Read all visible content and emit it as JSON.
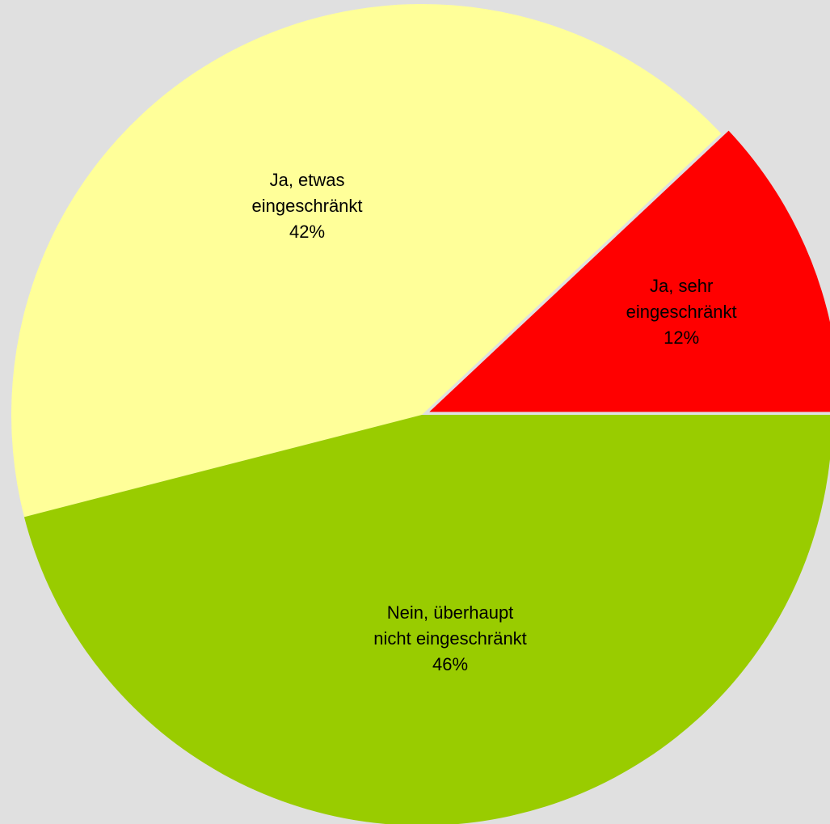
{
  "chart_data": {
    "type": "pie",
    "categories": [
      "Ja, sehr eingeschränkt",
      "Ja, etwas eingeschränkt",
      "Nein, überhaupt nicht eingeschränkt"
    ],
    "values": [
      12,
      42,
      46
    ],
    "value_labels": [
      "12%",
      "42%",
      "46%"
    ],
    "colors": [
      "#ff0000",
      "#ffff99",
      "#99cc00"
    ]
  }
}
